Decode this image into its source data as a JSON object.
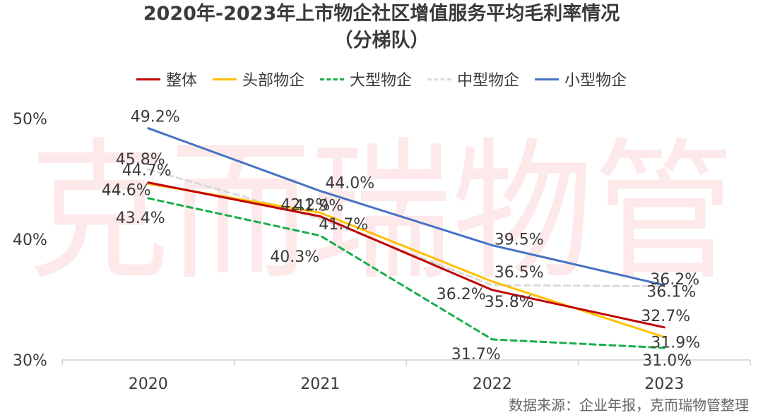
{
  "title": "2020年-2023年上市物企社区增值服务平均毛利率情况",
  "subtitle": "（分梯队）",
  "watermark": "克而瑞物管",
  "source": "数据来源：企业年报，克而瑞物管整理",
  "chart_data": {
    "type": "line",
    "categories": [
      "2020",
      "2021",
      "2022",
      "2023"
    ],
    "ylim": [
      30,
      50
    ],
    "yticks": [
      {
        "value": 30,
        "label": "30%"
      },
      {
        "value": 40,
        "label": "40%"
      },
      {
        "value": 50,
        "label": "50%"
      }
    ],
    "grid": false,
    "legend_position": "top",
    "series": [
      {
        "name": "整体",
        "color": "#c00000",
        "dash": "solid",
        "values": [
          44.7,
          41.9,
          35.8,
          32.7
        ],
        "labels": [
          "44.7%",
          "41.9%",
          "35.8%",
          "32.7%"
        ]
      },
      {
        "name": "头部物企",
        "color": "#ffc000",
        "dash": "solid",
        "values": [
          44.6,
          42.2,
          36.5,
          31.9
        ],
        "labels": [
          "44.6%",
          "42.2%",
          "36.5%",
          "31.9%"
        ]
      },
      {
        "name": "大型物企",
        "color": "#1aad4b",
        "dash": "dashed",
        "values": [
          43.4,
          40.3,
          31.7,
          31.0
        ],
        "labels": [
          "43.4%",
          "40.3%",
          "31.7%",
          "31.0%"
        ]
      },
      {
        "name": "中型物企",
        "color": "#d9d9d9",
        "dash": "dashed",
        "values": [
          45.8,
          41.7,
          36.2,
          36.1
        ],
        "labels": [
          "45.8%",
          "41.7%",
          "36.2%",
          "36.1%"
        ]
      },
      {
        "name": "小型物企",
        "color": "#4472c4",
        "dash": "solid",
        "values": [
          49.2,
          44.0,
          39.5,
          36.2
        ],
        "labels": [
          "49.2%",
          "44.0%",
          "39.5%",
          "36.2%"
        ]
      }
    ]
  }
}
